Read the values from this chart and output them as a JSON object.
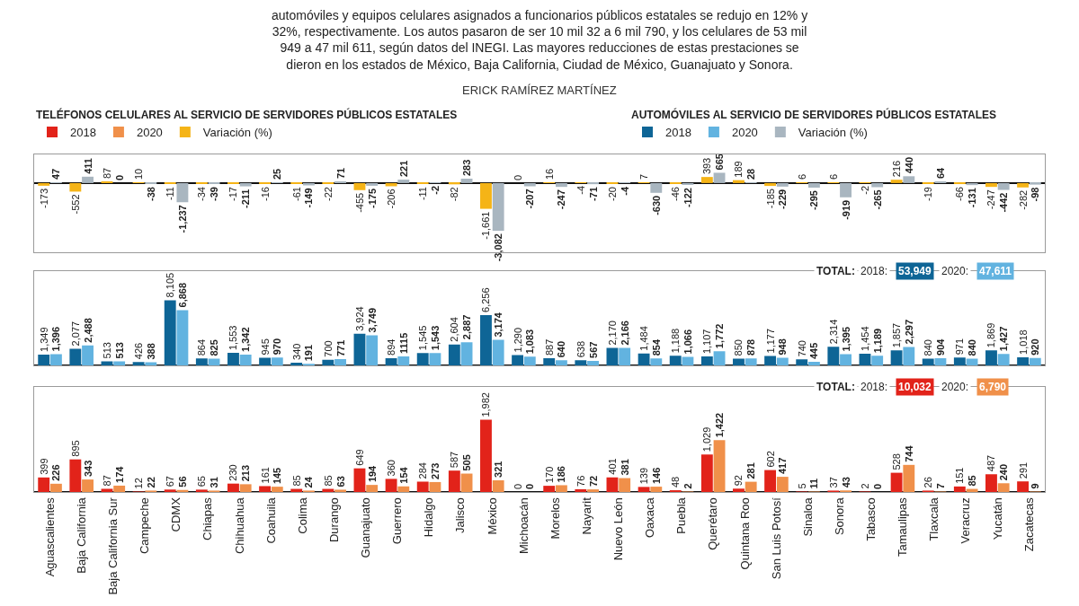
{
  "chart_data": [
    {
      "type": "bar",
      "categories": [
        "Aguascalientes",
        "Baja California",
        "Baja California Sur",
        "Campeche",
        "CDMX",
        "Chiapas",
        "Chihuahua",
        "Coahuila",
        "Colima",
        "Durango",
        "Guanajuato",
        "Guerrero",
        "Hidalgo",
        "Jalisco",
        "México",
        "Michoacán",
        "Morelos",
        "Nayarit",
        "Nuevo León",
        "Oaxaca",
        "Puebla",
        "Querétaro",
        "Quintana Roo",
        "San Luis Potosí",
        "Sinaloa",
        "Sonora",
        "Tabasco",
        "Tamaulipas",
        "Tlaxcala",
        "Veracruz",
        "Yucatán",
        "Zacatecas"
      ],
      "series": [
        {
          "name": "Variación (%)",
          "color": "#f5b417",
          "values": [
            -173,
            -552,
            87,
            10,
            -11,
            -34,
            -17,
            -16,
            -61,
            -22,
            -455,
            -206,
            -11,
            -82,
            -1661,
            0,
            16,
            -4,
            -20,
            7,
            -46,
            393,
            189,
            -185,
            6,
            6,
            -2,
            216,
            -19,
            -66,
            -247,
            -282
          ],
          "value_labels": [
            "-173",
            "-552",
            "87",
            "10",
            "-11",
            "-34",
            "-17",
            "-16",
            "-61",
            "-22",
            "-455",
            "-206",
            "-11",
            "-82",
            "-1,661",
            "0",
            "16",
            "-4",
            "-20",
            "7",
            "-46",
            "393",
            "189",
            "-185",
            "6",
            "6",
            "-2",
            "216",
            "-19",
            "-66",
            "-247",
            "-282"
          ]
        },
        {
          "name": "Variación (%)",
          "color": "#a9b6c0",
          "values": [
            47,
            411,
            0,
            -38,
            -1237,
            -39,
            -211,
            25,
            -149,
            71,
            -175,
            221,
            -2,
            283,
            -3082,
            -207,
            -247,
            -71,
            -4,
            -630,
            -122,
            665,
            28,
            -229,
            -295,
            -919,
            -265,
            440,
            64,
            -131,
            -442,
            -98
          ],
          "value_labels": [
            "47",
            "411",
            "0",
            "-38",
            "-1,237",
            "-39",
            "-211",
            "25",
            "-149",
            "71",
            "-175",
            "221",
            "-2",
            "283",
            "-3,082",
            "-207",
            "-247",
            "-71",
            "-4",
            "-630",
            "-122",
            "665",
            "28",
            "-229",
            "-295",
            "-919",
            "-265",
            "440",
            "64",
            "-131",
            "-442",
            "-98"
          ]
        }
      ],
      "tick_labels": false,
      "legend": "top",
      "annotations": [
        "automóviles y equipos celulares asignados a funcionarios públicos estatales se redujo en 12% y\n32%, respectivamente. Los autos pasaron de ser 10 mil 32 a 6 mil 790, y los celulares de 53 mil\n949 a 47 mil 611, según datos del INEGI. Las mayores reducciones de estas prestaciones se\ndieron en los estados de México, Baja California, Ciudad de México, Guanajuato y Sonora.",
        "ERICK RAMÍREZ MARTÍNEZ"
      ]
    },
    {
      "type": "bar",
      "categories": [
        "Aguascalientes",
        "Baja California",
        "Baja California Sur",
        "Campeche",
        "CDMX",
        "Chiapas",
        "Chihuahua",
        "Coahuila",
        "Colima",
        "Durango",
        "Guanajuato",
        "Guerrero",
        "Hidalgo",
        "Jalisco",
        "México",
        "Michoacán",
        "Morelos",
        "Nayarit",
        "Nuevo León",
        "Oaxaca",
        "Puebla",
        "Querétaro",
        "Quintana Roo",
        "San Luis Potosí",
        "Sinaloa",
        "Sonora",
        "Tabasco",
        "Tamaulipas",
        "Tlaxcala",
        "Veracruz",
        "Yucatán",
        "Zacatecas"
      ],
      "series": [
        {
          "name": "2018",
          "color": "#0e6596",
          "values": [
            1349,
            2077,
            513,
            426,
            8105,
            864,
            1553,
            945,
            340,
            700,
            3924,
            894,
            1545,
            2604,
            6256,
            1290,
            887,
            638,
            2170,
            1484,
            1188,
            1107,
            850,
            1177,
            740,
            2314,
            1454,
            1857,
            840,
            971,
            1869,
            1018
          ],
          "value_labels": [
            "1,349",
            "2,077",
            "513",
            "426",
            "8,105",
            "864",
            "1,553",
            "945",
            "340",
            "700",
            "3,924",
            "894",
            "1,545",
            "2,604",
            "6,256",
            "1,290",
            "887",
            "638",
            "2,170",
            "1,484",
            "1,188",
            "1,107",
            "850",
            "1,177",
            "740",
            "2,314",
            "1,454",
            "1,857",
            "840",
            "971",
            "1,869",
            "1,018"
          ]
        },
        {
          "name": "2020",
          "color": "#62b3e0",
          "values": [
            1396,
            2488,
            513,
            388,
            6868,
            825,
            1342,
            970,
            191,
            771,
            3749,
            1115,
            1543,
            2887,
            3174,
            1083,
            640,
            567,
            2166,
            854,
            1066,
            1772,
            878,
            948,
            445,
            1395,
            1189,
            2297,
            904,
            840,
            1427,
            920
          ],
          "value_labels": [
            "1,396",
            "2,488",
            "513",
            "388",
            "6,868",
            "825",
            "1,342",
            "970",
            "191",
            "771",
            "3,749",
            "1115",
            "1,543",
            "2,887",
            "3,174",
            "1,083",
            "640",
            "567",
            "2,166",
            "854",
            "1,066",
            "1,772",
            "878",
            "948",
            "445",
            "1,395",
            "1,189",
            "2,297",
            "904",
            "840",
            "1,427",
            "920"
          ]
        }
      ],
      "tick_labels": false,
      "legend": "top right",
      "legend_title": "AUTOMÓVILES AL SERVICIO DE SERVIDORES PÚBLICOS ESTATALES",
      "annotations": [
        "TOTAL:",
        "2018:",
        "53,949",
        "2020:",
        "47,611"
      ]
    },
    {
      "type": "bar",
      "categories": [
        "Aguascalientes",
        "Baja California",
        "Baja California Sur",
        "Campeche",
        "CDMX",
        "Chiapas",
        "Chihuahua",
        "Coahuila",
        "Colima",
        "Durango",
        "Guanajuato",
        "Guerrero",
        "Hidalgo",
        "Jalisco",
        "México",
        "Michoacán",
        "Morelos",
        "Nayarit",
        "Nuevo León",
        "Oaxaca",
        "Puebla",
        "Querétaro",
        "Quintana Roo",
        "San Luis Potosí",
        "Sinaloa",
        "Sonora",
        "Tabasco",
        "Tamaulipas",
        "Tlaxcala",
        "Veracruz",
        "Yucatán",
        "Zacatecas"
      ],
      "series": [
        {
          "name": "2018",
          "color": "#e2231a",
          "values": [
            399,
            895,
            87,
            12,
            67,
            65,
            230,
            161,
            85,
            85,
            649,
            360,
            284,
            587,
            1982,
            0,
            170,
            76,
            401,
            139,
            48,
            1029,
            92,
            602,
            5,
            37,
            2,
            528,
            26,
            151,
            487,
            291
          ],
          "value_labels": [
            "399",
            "895",
            "87",
            "12",
            "67",
            "65",
            "230",
            "161",
            "85",
            "85",
            "649",
            "360",
            "284",
            "587",
            "1,982",
            "0",
            "170",
            "76",
            "401",
            "139",
            "48",
            "1,029",
            "92",
            "602",
            "5",
            "37",
            "2",
            "528",
            "26",
            "151",
            "487",
            "291"
          ]
        },
        {
          "name": "2020",
          "color": "#f0904a",
          "values": [
            226,
            343,
            174,
            22,
            56,
            31,
            213,
            145,
            24,
            63,
            194,
            154,
            273,
            505,
            321,
            0,
            186,
            72,
            381,
            146,
            2,
            1422,
            281,
            417,
            11,
            43,
            0,
            744,
            7,
            85,
            240,
            9
          ],
          "value_labels": [
            "226",
            "343",
            "174",
            "22",
            "56",
            "31",
            "213",
            "145",
            "24",
            "63",
            "194",
            "154",
            "273",
            "505",
            "321",
            "0",
            "186",
            "72",
            "381",
            "146",
            "2",
            "1,422",
            "281",
            "417",
            "11",
            "43",
            "0",
            "744",
            "7",
            "85",
            "240",
            "9"
          ]
        }
      ],
      "tick_labels": "x",
      "legend": "top left",
      "legend_title": "TELÉFONOS CELULARES AL SERVICIO DE SERVIDORES PÚBLICOS ESTATALES",
      "annotations": [
        "TOTAL:",
        "2018:",
        "10,032",
        "2020:",
        "6,790"
      ]
    }
  ]
}
